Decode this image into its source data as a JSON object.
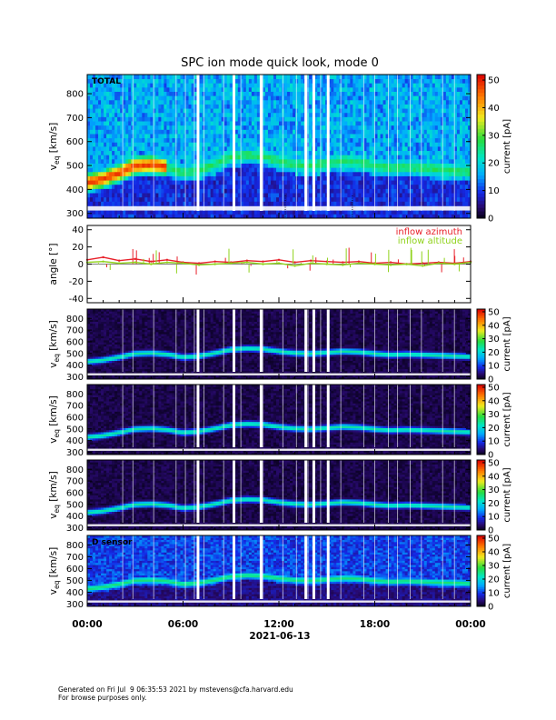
{
  "figure": {
    "title": "SPC ion mode quick look, mode 0",
    "date_label": "2021-06-13",
    "footer_line1": "Generated on Fri Jul  9 06:35:53 2021 by mstevens@cfa.harvard.edu",
    "footer_line2": "For browse purposes only."
  },
  "colors": {
    "inflow_azimuth": "#e8202a",
    "inflow_altitude": "#8fd21a"
  },
  "chart_data": [
    {
      "type": "heatmap",
      "panel_label": "TOTAL",
      "ylabel": "v",
      "ylabel_sub": "eq",
      "ylabel_unit": "[km/s]",
      "ylim": [
        280,
        880
      ],
      "yticks": [
        300,
        400,
        500,
        600,
        700,
        800
      ],
      "xlim": [
        "00:00",
        "24:00"
      ],
      "colorbar": {
        "label": "current [pA]",
        "range": [
          0,
          52
        ],
        "ticks": [
          0,
          10,
          20,
          30,
          40,
          50
        ]
      },
      "beam_speed_kms": [
        [
          0,
          430
        ],
        [
          1,
          445
        ],
        [
          2,
          470
        ],
        [
          3,
          500
        ],
        [
          4,
          505
        ],
        [
          5,
          495
        ],
        [
          6,
          470
        ],
        [
          7,
          480
        ],
        [
          8,
          505
        ],
        [
          9,
          535
        ],
        [
          10,
          545
        ],
        [
          11,
          540
        ],
        [
          12,
          520
        ],
        [
          13,
          505
        ],
        [
          14,
          500
        ],
        [
          15,
          510
        ],
        [
          16,
          520
        ],
        [
          17,
          515
        ],
        [
          18,
          500
        ],
        [
          19,
          490
        ],
        [
          20,
          495
        ],
        [
          21,
          490
        ],
        [
          22,
          485
        ],
        [
          23,
          480
        ],
        [
          24,
          475
        ]
      ]
    },
    {
      "type": "line",
      "ylabel": "angle [°]",
      "ylim": [
        -45,
        45
      ],
      "yticks": [
        -40,
        -20,
        0,
        20,
        40
      ],
      "xlim": [
        "00:00",
        "24:00"
      ],
      "series": [
        {
          "name": "inflow azimuth",
          "values": [
            [
              0,
              5
            ],
            [
              1,
              8
            ],
            [
              2,
              4
            ],
            [
              3,
              6
            ],
            [
              4,
              3
            ],
            [
              5,
              5
            ],
            [
              6,
              2
            ],
            [
              7,
              1
            ],
            [
              8,
              3
            ],
            [
              9,
              2
            ],
            [
              10,
              4
            ],
            [
              11,
              3
            ],
            [
              12,
              5
            ],
            [
              13,
              2
            ],
            [
              14,
              4
            ],
            [
              15,
              3
            ],
            [
              16,
              2
            ],
            [
              17,
              3
            ],
            [
              18,
              1
            ],
            [
              19,
              2
            ],
            [
              20,
              0
            ],
            [
              21,
              1
            ],
            [
              22,
              2
            ],
            [
              23,
              1
            ],
            [
              24,
              3
            ]
          ]
        },
        {
          "name": "inflow altitude",
          "values": [
            [
              0,
              2
            ],
            [
              1,
              3
            ],
            [
              2,
              1
            ],
            [
              3,
              2
            ],
            [
              4,
              0
            ],
            [
              5,
              2
            ],
            [
              6,
              1
            ],
            [
              7,
              -1
            ],
            [
              8,
              0
            ],
            [
              9,
              1
            ],
            [
              10,
              2
            ],
            [
              11,
              0
            ],
            [
              12,
              1
            ],
            [
              13,
              -2
            ],
            [
              14,
              1
            ],
            [
              15,
              0
            ],
            [
              16,
              -1
            ],
            [
              17,
              1
            ],
            [
              18,
              0
            ],
            [
              19,
              -1
            ],
            [
              20,
              0
            ],
            [
              21,
              -2
            ],
            [
              22,
              1
            ],
            [
              23,
              0
            ],
            [
              24,
              2
            ]
          ]
        }
      ]
    },
    {
      "type": "heatmap",
      "panel_label": "",
      "ylabel": "v",
      "ylabel_sub": "eq",
      "ylabel_unit": "[km/s]",
      "ylim": [
        280,
        880
      ],
      "yticks": [
        300,
        400,
        500,
        600,
        700,
        800
      ],
      "colorbar": {
        "label": "current [pA]",
        "range": [
          0,
          52
        ],
        "ticks": [
          0,
          10,
          20,
          30,
          40,
          50
        ]
      }
    },
    {
      "type": "heatmap",
      "panel_label": "",
      "ylabel": "v",
      "ylabel_sub": "eq",
      "ylabel_unit": "[km/s]",
      "ylim": [
        280,
        880
      ],
      "yticks": [
        300,
        400,
        500,
        600,
        700,
        800
      ],
      "colorbar": {
        "label": "current [pA]",
        "range": [
          0,
          52
        ],
        "ticks": [
          0,
          10,
          20,
          30,
          40,
          50
        ]
      }
    },
    {
      "type": "heatmap",
      "panel_label": "",
      "ylabel": "v",
      "ylabel_sub": "eq",
      "ylabel_unit": "[km/s]",
      "ylim": [
        280,
        880
      ],
      "yticks": [
        300,
        400,
        500,
        600,
        700,
        800
      ],
      "colorbar": {
        "label": "current [pA]",
        "range": [
          0,
          52
        ],
        "ticks": [
          0,
          10,
          20,
          30,
          40,
          50
        ]
      }
    },
    {
      "type": "heatmap",
      "panel_label": "D sensor",
      "ylabel": "v",
      "ylabel_sub": "eq",
      "ylabel_unit": "[km/s]",
      "ylim": [
        280,
        880
      ],
      "yticks": [
        300,
        400,
        500,
        600,
        700,
        800
      ],
      "colorbar": {
        "label": "current [pA]",
        "range": [
          0,
          52
        ],
        "ticks": [
          0,
          10,
          20,
          30,
          40,
          50
        ]
      }
    }
  ],
  "time_axis": {
    "tick_labels": [
      "00:00",
      "06:00",
      "12:00",
      "18:00",
      "00:00"
    ],
    "tick_hours": [
      0,
      6,
      12,
      18,
      24
    ]
  }
}
